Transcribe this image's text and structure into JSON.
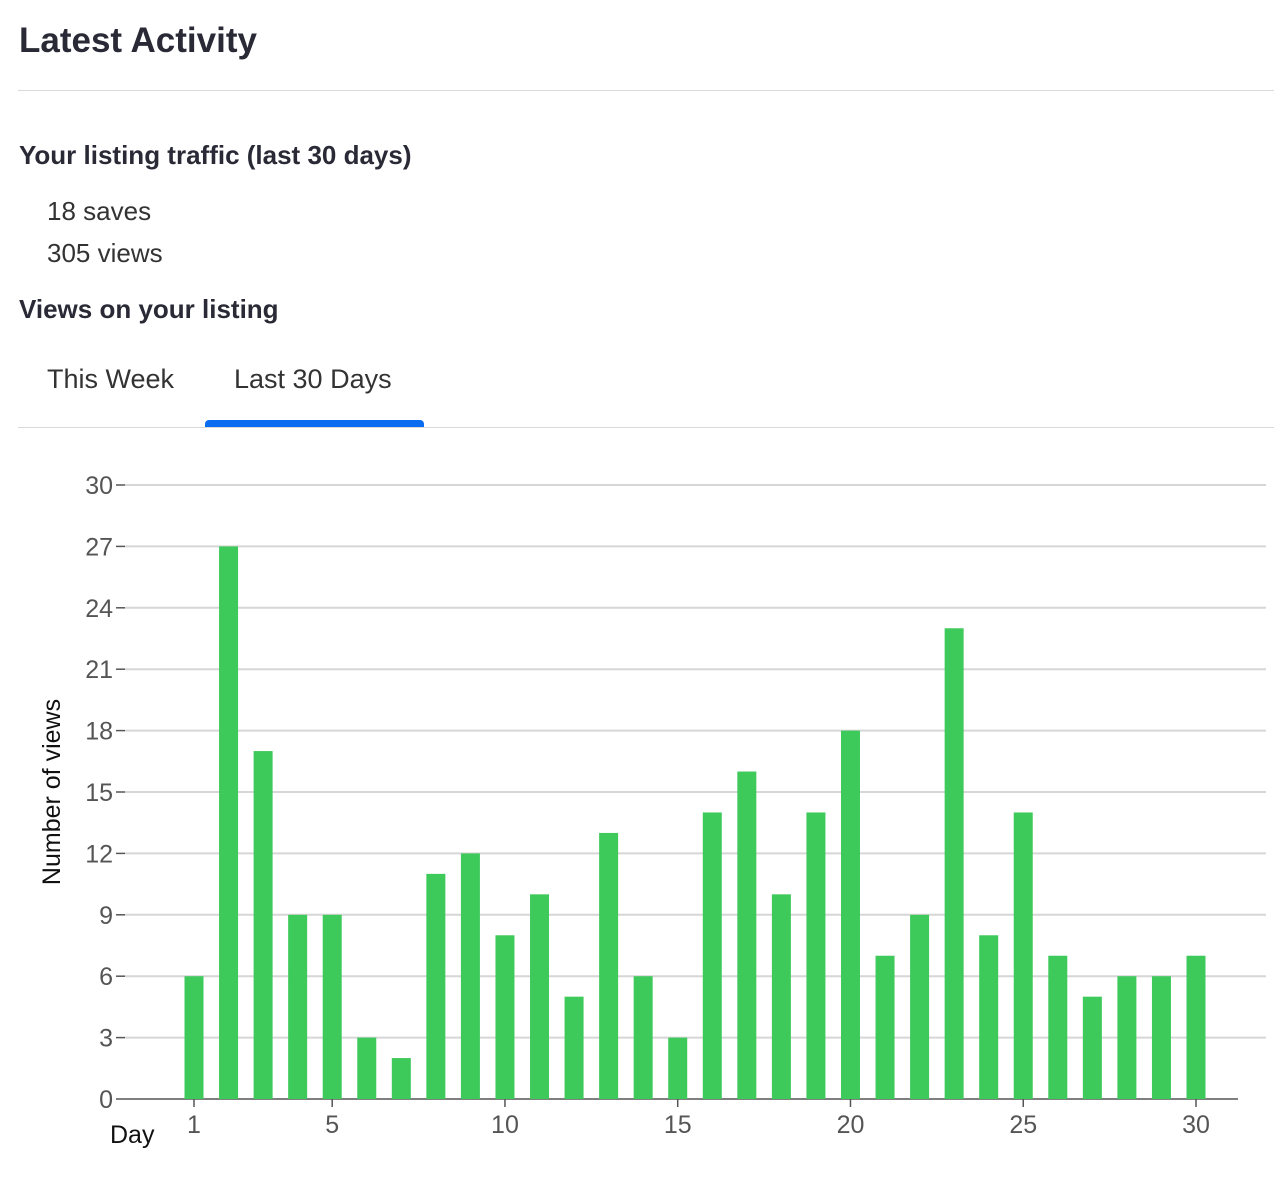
{
  "page": {
    "title": "Latest Activity",
    "traffic_heading": "Your listing traffic (last 30 days)",
    "saves": "18 saves",
    "views": "305 views",
    "views_heading": "Views on your listing",
    "tabs": [
      {
        "label": "This Week",
        "active": false
      },
      {
        "label": "Last 30 Days",
        "active": true
      }
    ]
  },
  "colors": {
    "bar": "#3ec95b",
    "tab_indicator": "#0a6cf0",
    "grid": "#d6d6d6"
  },
  "chart_data": {
    "type": "bar",
    "title": "",
    "xlabel": "Day",
    "ylabel": "Number of views",
    "x": [
      1,
      2,
      3,
      4,
      5,
      6,
      7,
      8,
      9,
      10,
      11,
      12,
      13,
      14,
      15,
      16,
      17,
      18,
      19,
      20,
      21,
      22,
      23,
      24,
      25,
      26,
      27,
      28,
      29,
      30
    ],
    "values": [
      6,
      27,
      17,
      9,
      9,
      3,
      2,
      11,
      12,
      8,
      10,
      5,
      13,
      6,
      3,
      14,
      16,
      10,
      14,
      18,
      7,
      9,
      23,
      8,
      14,
      7,
      5,
      6,
      6,
      7
    ],
    "x_ticks": [
      1,
      5,
      10,
      15,
      20,
      25,
      30
    ],
    "y_ticks": [
      0,
      3,
      6,
      9,
      12,
      15,
      18,
      21,
      24,
      27,
      30
    ],
    "ylim": [
      0,
      30
    ],
    "grid": true
  }
}
